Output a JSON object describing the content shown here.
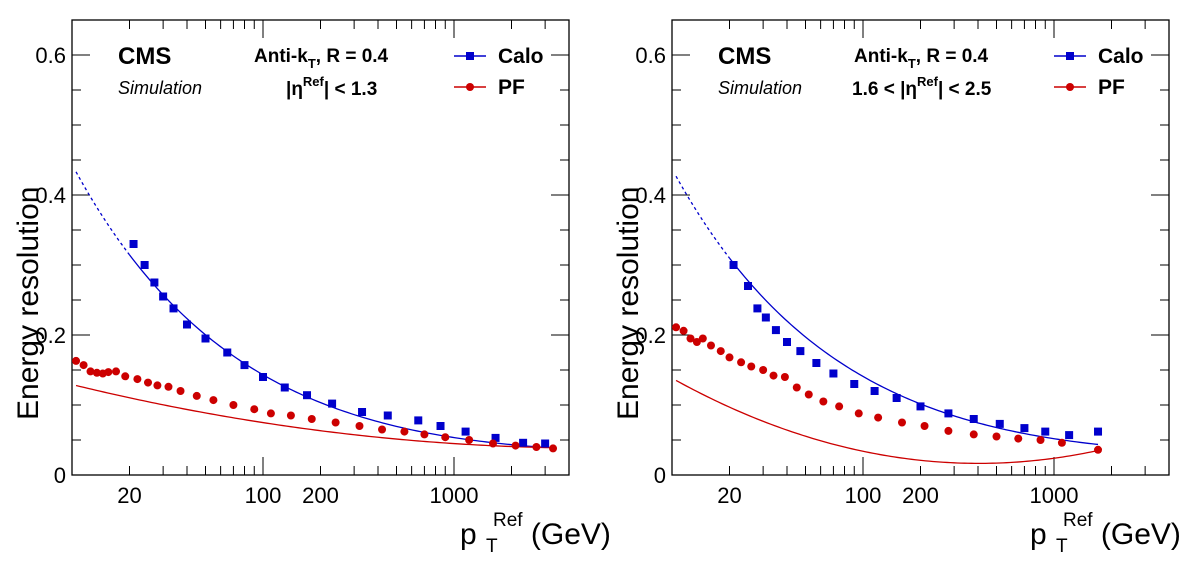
{
  "colors": {
    "calo": "#0000cc",
    "pf": "#cc0000",
    "axis": "#000000"
  },
  "chart_data": [
    {
      "type": "scatter",
      "experiment": "CMS",
      "status": "Simulation",
      "algorithm_line": "Anti-kT, R = 0.4",
      "algorithm_parts": {
        "pre": "Anti-k",
        "sub": "T",
        "post": ", R = 0.4"
      },
      "eta_region_parts": {
        "pre": "|η",
        "sup": "Ref",
        "post": "| < 1.3"
      },
      "xlabel_parts": {
        "p": "p",
        "sub": "T",
        "sup": "Ref",
        "unit": " (GeV)"
      },
      "ylabel": "Energy resolution",
      "xscale": "log",
      "xlim": [
        10,
        4000
      ],
      "ylim": [
        0,
        0.65
      ],
      "xticks": [
        20,
        100,
        200,
        1000
      ],
      "xtick_labels": [
        "20",
        "100",
        "200",
        "1000"
      ],
      "yticks": [
        0,
        0.2,
        0.4,
        0.6
      ],
      "ytick_labels": [
        "0",
        "0.2",
        "0.4",
        "0.6"
      ],
      "legend_position": "top-right",
      "series": [
        {
          "name": "Calo",
          "marker": "square",
          "x": [
            21,
            24,
            27,
            30,
            34,
            40,
            50,
            65,
            80,
            100,
            130,
            170,
            230,
            330,
            450,
            650,
            850,
            1150,
            1650,
            2300,
            3000
          ],
          "y": [
            0.33,
            0.3,
            0.275,
            0.255,
            0.238,
            0.215,
            0.195,
            0.175,
            0.157,
            0.14,
            0.125,
            0.114,
            0.102,
            0.09,
            0.085,
            0.078,
            0.07,
            0.062,
            0.053,
            0.046,
            0.045
          ],
          "fit": {
            "a": 1.4,
            "b": 0.0,
            "c": 0.03,
            "x_solid_from": 20,
            "x_dashed_from": 10.5
          }
        },
        {
          "name": "PF",
          "marker": "circle",
          "x": [
            10.5,
            11.5,
            12.5,
            13.5,
            14.5,
            15.5,
            17,
            19,
            22,
            25,
            28,
            32,
            37,
            45,
            55,
            70,
            90,
            110,
            140,
            180,
            240,
            320,
            420,
            550,
            700,
            900,
            1200,
            1600,
            2100,
            2700,
            3300
          ],
          "y": [
            0.163,
            0.157,
            0.148,
            0.146,
            0.145,
            0.147,
            0.148,
            0.141,
            0.137,
            0.132,
            0.128,
            0.126,
            0.12,
            0.113,
            0.107,
            0.1,
            0.094,
            0.088,
            0.085,
            0.08,
            0.075,
            0.07,
            0.065,
            0.062,
            0.058,
            0.054,
            0.05,
            0.045,
            0.042,
            0.04,
            0.038
          ],
          "fit": {
            "type": "poly-log",
            "p": [
              0.208,
              -0.0395,
              0.0023
            ]
          }
        }
      ]
    },
    {
      "type": "scatter",
      "experiment": "CMS",
      "status": "Simulation",
      "algorithm_line": "Anti-kT, R = 0.4",
      "algorithm_parts": {
        "pre": "Anti-k",
        "sub": "T",
        "post": ", R = 0.4"
      },
      "eta_region_parts": {
        "pre": "1.6 < |η",
        "sup": "Ref",
        "post": "| < 2.5"
      },
      "xlabel_parts": {
        "p": "p",
        "sub": "T",
        "sup": "Ref",
        "unit": " (GeV)"
      },
      "ylabel": "Energy resolution",
      "xscale": "log",
      "xlim": [
        10,
        4000
      ],
      "ylim": [
        0,
        0.65
      ],
      "xticks": [
        20,
        100,
        200,
        1000
      ],
      "xtick_labels": [
        "20",
        "100",
        "200",
        "1000"
      ],
      "yticks": [
        0,
        0.2,
        0.4,
        0.6
      ],
      "ytick_labels": [
        "0",
        "0.2",
        "0.4",
        "0.6"
      ],
      "legend_position": "top-right",
      "series": [
        {
          "name": "Calo",
          "marker": "square",
          "x": [
            21,
            25,
            28,
            31,
            35,
            40,
            47,
            57,
            70,
            90,
            115,
            150,
            200,
            280,
            380,
            520,
            700,
            900,
            1200,
            1700
          ],
          "y": [
            0.3,
            0.27,
            0.238,
            0.225,
            0.207,
            0.19,
            0.177,
            0.16,
            0.145,
            0.13,
            0.12,
            0.11,
            0.098,
            0.088,
            0.08,
            0.073,
            0.067,
            0.062,
            0.057,
            0.062
          ],
          "fit": {
            "a": 1.38,
            "b": 0.0,
            "c": 0.028,
            "x_solid_from": 20,
            "x_dashed_from": 10.5
          }
        },
        {
          "name": "PF",
          "marker": "circle",
          "x": [
            10.5,
            11.5,
            12.5,
            13.5,
            14.5,
            16,
            18,
            20,
            23,
            26,
            30,
            34,
            39,
            45,
            52,
            62,
            75,
            95,
            120,
            160,
            210,
            280,
            380,
            500,
            650,
            850,
            1100,
            1700
          ],
          "y": [
            0.211,
            0.206,
            0.195,
            0.19,
            0.195,
            0.185,
            0.177,
            0.168,
            0.161,
            0.155,
            0.15,
            0.142,
            0.14,
            0.125,
            0.115,
            0.105,
            0.098,
            0.088,
            0.082,
            0.075,
            0.07,
            0.063,
            0.058,
            0.055,
            0.052,
            0.05,
            0.046,
            0.036
          ],
          "fit": {
            "type": "poly-log",
            "p": [
              0.337,
              -0.1068,
              0.0089
            ]
          }
        }
      ]
    }
  ]
}
